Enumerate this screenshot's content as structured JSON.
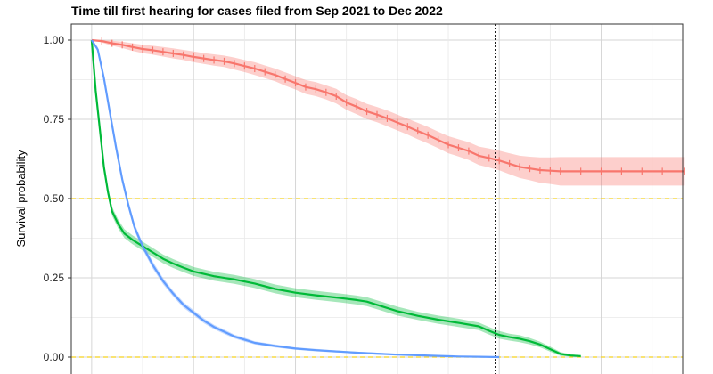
{
  "chart_data": {
    "type": "line",
    "subtype": "kaplan-meier",
    "title": "Time till first hearing for cases filed from Sep 2021 to Dec 2022",
    "xlabel": "",
    "ylabel": "Survival probability",
    "xlim": [
      -1,
      29
    ],
    "ylim": [
      0,
      1
    ],
    "x_tick_labels_visible": false,
    "y_ticks": [
      "0.00",
      "0.25",
      "0.50",
      "0.75",
      "1.00"
    ],
    "grid": true,
    "legend": "none",
    "reference_lines": {
      "horizontal_dashed_y": [
        0.0,
        0.5
      ],
      "horizontal_color": "#f5d21f",
      "vertical_dotted_x": 19.8,
      "vertical_color": "#000000"
    },
    "colors": {
      "series_0": "#f8766d",
      "series_1": "#00ba38",
      "series_2": "#619cff",
      "band_0": "#f8766d",
      "band_1": "#00ba38",
      "band_2": "#619cff",
      "grid": "#d6d6d6",
      "panel_border": "#333333"
    },
    "series": [
      {
        "x": [
          0,
          0.5,
          1,
          1.5,
          2,
          2.5,
          3,
          3.5,
          4,
          4.5,
          5,
          5.5,
          6,
          6.5,
          7,
          7.5,
          8,
          8.5,
          9,
          9.5,
          10,
          10.5,
          11,
          11.5,
          12,
          12.5,
          13,
          13.5,
          14,
          14.5,
          15,
          15.5,
          16,
          16.5,
          17,
          17.5,
          18,
          18.5,
          19,
          19.5,
          20,
          20.5,
          21,
          21.5,
          22,
          22.5,
          23,
          24,
          25,
          26,
          27,
          28,
          29.1
        ],
        "y": [
          1.0,
          0.997,
          0.99,
          0.985,
          0.978,
          0.972,
          0.968,
          0.963,
          0.958,
          0.953,
          0.947,
          0.942,
          0.937,
          0.933,
          0.926,
          0.918,
          0.91,
          0.9,
          0.89,
          0.877,
          0.865,
          0.852,
          0.845,
          0.835,
          0.823,
          0.803,
          0.79,
          0.775,
          0.765,
          0.753,
          0.74,
          0.727,
          0.713,
          0.7,
          0.685,
          0.67,
          0.66,
          0.65,
          0.635,
          0.628,
          0.62,
          0.61,
          0.6,
          0.595,
          0.59,
          0.588,
          0.586,
          0.586,
          0.586,
          0.586,
          0.586,
          0.586,
          0.586
        ],
        "ci_halfwidth": [
          0,
          0.005,
          0.008,
          0.01,
          0.012,
          0.013,
          0.014,
          0.015,
          0.016,
          0.016,
          0.017,
          0.017,
          0.018,
          0.018,
          0.019,
          0.019,
          0.02,
          0.02,
          0.02,
          0.021,
          0.021,
          0.022,
          0.022,
          0.022,
          0.023,
          0.023,
          0.024,
          0.024,
          0.024,
          0.025,
          0.025,
          0.025,
          0.026,
          0.026,
          0.026,
          0.027,
          0.027,
          0.028,
          0.029,
          0.03,
          0.031,
          0.033,
          0.035,
          0.037,
          0.04,
          0.042,
          0.045,
          0.045,
          0.045,
          0.045,
          0.045,
          0.045,
          0.045
        ]
      },
      {
        "x": [
          0,
          0.2,
          0.4,
          0.6,
          0.8,
          1,
          1.3,
          1.6,
          2,
          2.5,
          3,
          3.5,
          4,
          4.5,
          5,
          6,
          7,
          8,
          9,
          10,
          11,
          12,
          13,
          13.5,
          14,
          15,
          16,
          17,
          18,
          19,
          19.5,
          20,
          20.5,
          21,
          21.5,
          22,
          22.5,
          23,
          23.5,
          24
        ],
        "y": [
          1.0,
          0.84,
          0.72,
          0.6,
          0.52,
          0.46,
          0.42,
          0.39,
          0.37,
          0.35,
          0.33,
          0.31,
          0.295,
          0.282,
          0.27,
          0.255,
          0.245,
          0.232,
          0.215,
          0.203,
          0.195,
          0.188,
          0.18,
          0.175,
          0.165,
          0.145,
          0.13,
          0.118,
          0.108,
          0.097,
          0.083,
          0.07,
          0.063,
          0.058,
          0.05,
          0.04,
          0.025,
          0.01,
          0.005,
          0.003
        ],
        "ci_halfwidth": [
          0,
          0.01,
          0.012,
          0.013,
          0.014,
          0.014,
          0.014,
          0.014,
          0.014,
          0.014,
          0.014,
          0.014,
          0.014,
          0.014,
          0.014,
          0.014,
          0.014,
          0.014,
          0.014,
          0.014,
          0.014,
          0.014,
          0.014,
          0.014,
          0.014,
          0.014,
          0.013,
          0.013,
          0.013,
          0.012,
          0.012,
          0.012,
          0.011,
          0.011,
          0.01,
          0.009,
          0.008,
          0.006,
          0.004,
          0.002
        ]
      },
      {
        "x": [
          0,
          0.3,
          0.6,
          0.9,
          1.2,
          1.5,
          1.8,
          2.1,
          2.5,
          3,
          3.5,
          4,
          4.5,
          5,
          5.5,
          6,
          6.5,
          7,
          7.5,
          8,
          9,
          10,
          11,
          12,
          13,
          14,
          15,
          16,
          17,
          18,
          19,
          20
        ],
        "y": [
          1.0,
          0.97,
          0.88,
          0.77,
          0.66,
          0.56,
          0.48,
          0.41,
          0.35,
          0.29,
          0.24,
          0.2,
          0.165,
          0.14,
          0.115,
          0.095,
          0.08,
          0.065,
          0.055,
          0.045,
          0.035,
          0.027,
          0.022,
          0.018,
          0.014,
          0.011,
          0.008,
          0.006,
          0.004,
          0.002,
          0.001,
          0.0
        ],
        "ci_halfwidth": [
          0,
          0.008,
          0.01,
          0.011,
          0.012,
          0.012,
          0.012,
          0.012,
          0.011,
          0.011,
          0.01,
          0.009,
          0.009,
          0.008,
          0.008,
          0.007,
          0.007,
          0.006,
          0.006,
          0.005,
          0.005,
          0.004,
          0.004,
          0.003,
          0.003,
          0.003,
          0.002,
          0.002,
          0.002,
          0.001,
          0.001,
          0.0
        ]
      }
    ]
  }
}
